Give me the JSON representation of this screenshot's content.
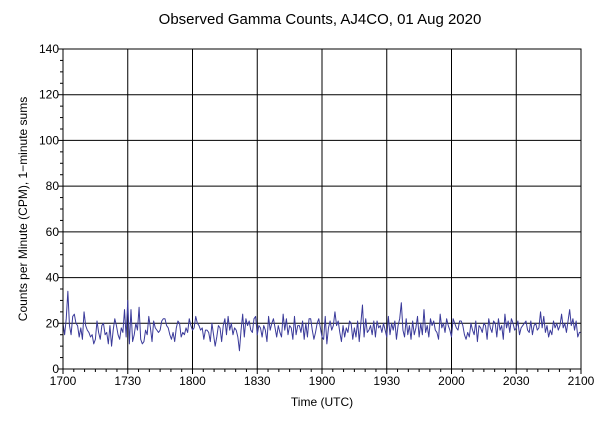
{
  "chart_data": {
    "type": "line",
    "title": "Observed Gamma Counts, AJ4CO, 01 Aug 2020",
    "xlabel": "Time (UTC)",
    "ylabel": "Counts per Minute (CPM), 1−minute sums",
    "x_tick_labels": [
      "1700",
      "1730",
      "1800",
      "1830",
      "1900",
      "1930",
      "2000",
      "2030",
      "2100"
    ],
    "y_tick_labels": [
      "0",
      "20",
      "40",
      "60",
      "80",
      "100",
      "120",
      "140"
    ],
    "xlim_minutes": [
      0,
      240
    ],
    "ylim": [
      0,
      140
    ],
    "grid": true,
    "legend": "none",
    "series": [
      {
        "color": "#3a3a9a",
        "values": [
          20,
          15,
          22,
          34,
          19,
          15,
          23,
          24,
          20,
          19,
          14,
          18,
          13,
          25,
          19,
          17,
          16,
          14,
          15,
          11,
          13,
          21,
          16,
          13,
          19,
          20,
          15,
          16,
          11,
          19,
          10,
          17,
          22,
          19,
          15,
          13,
          18,
          16,
          26,
          14,
          30,
          11,
          26,
          12,
          15,
          20,
          17,
          27,
          13,
          11,
          12,
          17,
          15,
          23,
          18,
          12,
          21,
          18,
          17,
          16,
          17,
          21,
          22,
          22,
          19,
          18,
          15,
          13,
          16,
          12,
          18,
          21,
          20,
          14,
          16,
          15,
          18,
          16,
          22,
          19,
          17,
          18,
          23,
          20,
          19,
          17,
          18,
          13,
          17,
          17,
          16,
          12,
          20,
          15,
          10,
          14,
          19,
          18,
          12,
          19,
          22,
          15,
          23,
          17,
          20,
          15,
          18,
          17,
          14,
          8,
          17,
          24,
          14,
          22,
          19,
          21,
          17,
          16,
          22,
          23,
          15,
          19,
          18,
          14,
          19,
          17,
          12,
          23,
          17,
          20,
          22,
          18,
          14,
          19,
          16,
          14,
          24,
          17,
          22,
          15,
          19,
          18,
          13,
          23,
          15,
          19,
          19,
          16,
          21,
          13,
          20,
          14,
          22,
          22,
          17,
          13,
          16,
          20,
          22,
          18,
          14,
          13,
          23,
          11,
          18,
          21,
          17,
          19,
          25,
          19,
          21,
          16,
          12,
          19,
          14,
          18,
          16,
          21,
          20,
          13,
          18,
          14,
          21,
          12,
          20,
          28,
          14,
          22,
          16,
          17,
          19,
          15,
          21,
          14,
          21,
          18,
          19,
          16,
          20,
          17,
          14,
          23,
          15,
          20,
          17,
          21,
          13,
          19,
          22,
          29,
          17,
          14,
          22,
          15,
          19,
          13,
          21,
          15,
          18,
          23,
          14,
          20,
          15,
          26,
          16,
          19,
          14,
          22,
          19,
          21,
          17,
          16,
          13,
          24,
          18,
          20,
          16,
          22,
          19,
          17,
          14,
          22,
          20,
          18,
          17,
          21,
          21,
          19,
          15,
          13,
          16,
          14,
          20,
          17,
          15,
          21,
          12,
          19,
          18,
          16,
          20,
          19,
          13,
          22,
          18,
          16,
          21,
          20,
          14,
          22,
          17,
          19,
          13,
          24,
          18,
          21,
          16,
          22,
          20,
          17,
          18,
          21,
          15,
          18,
          19,
          20,
          21,
          17,
          16,
          21,
          15,
          19,
          20,
          17,
          18,
          25,
          18,
          23,
          16,
          19,
          14,
          17,
          15,
          21,
          18,
          20,
          17,
          19,
          24,
          18,
          20,
          16,
          21,
          26,
          19,
          22,
          17,
          21,
          14,
          16,
          16
        ]
      }
    ]
  }
}
